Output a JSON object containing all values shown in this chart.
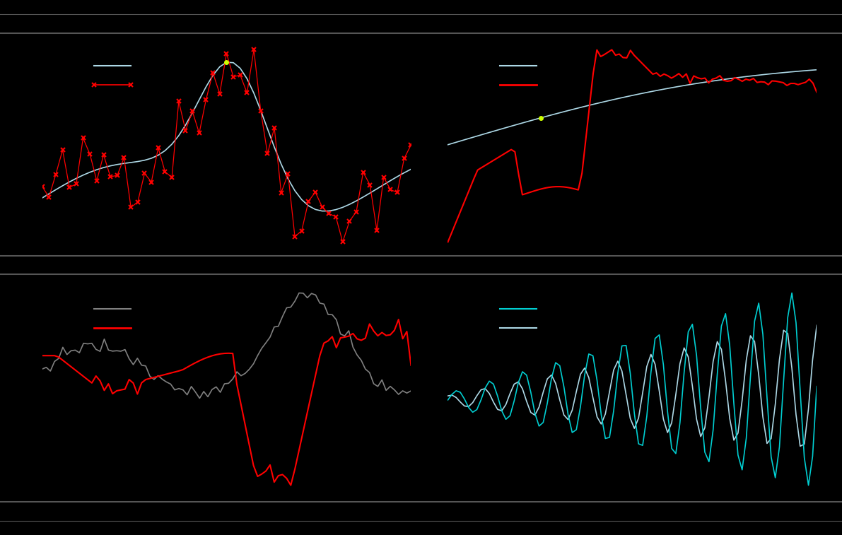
{
  "background_color": "#000000",
  "separator_color": "#555555",
  "line1_color": "#add8e6",
  "line2_color": "#ff0000",
  "line3_color": "#808080",
  "line4_color": "#00ced1",
  "dot_color": "#ccff00"
}
